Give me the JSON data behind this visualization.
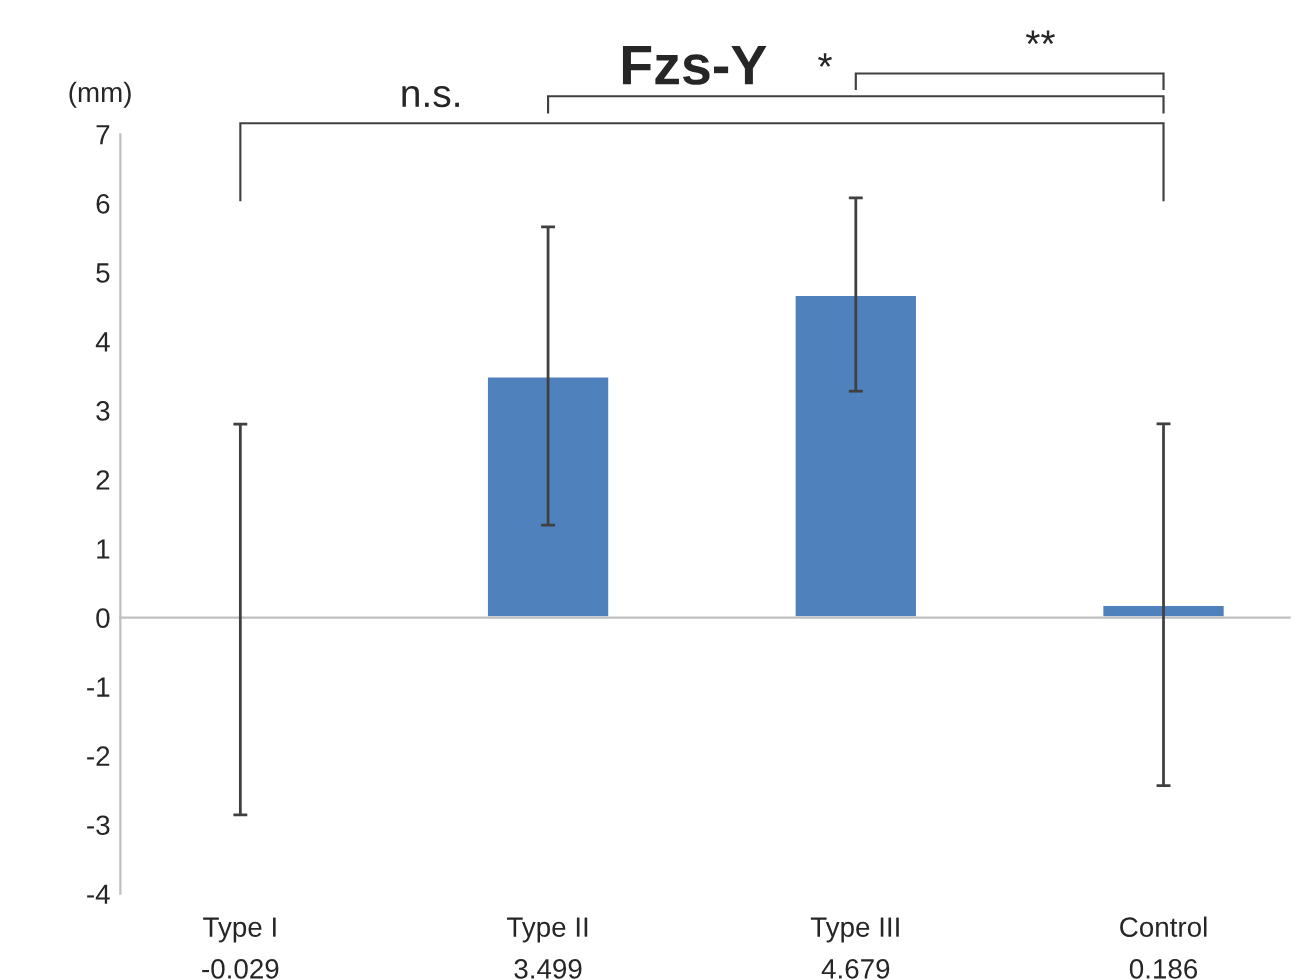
{
  "chart_data": {
    "type": "bar",
    "title": "Fzs-Y",
    "ylabel": "(mm)",
    "categories": [
      "Type I",
      "Type II",
      "Type III",
      "Control"
    ],
    "values": [
      -0.029,
      3.499,
      4.679,
      0.186
    ],
    "errors": [
      2.83,
      2.16,
      1.4,
      2.62
    ],
    "color": "#4f81bd",
    "data_labels": true,
    "ylim": [
      -4,
      7
    ],
    "yticks": [
      -4,
      -3,
      -2,
      -1,
      0,
      1,
      2,
      3,
      4,
      5,
      6,
      7
    ],
    "legend": false,
    "annotations": [
      "n.s.",
      "*",
      "**"
    ]
  }
}
